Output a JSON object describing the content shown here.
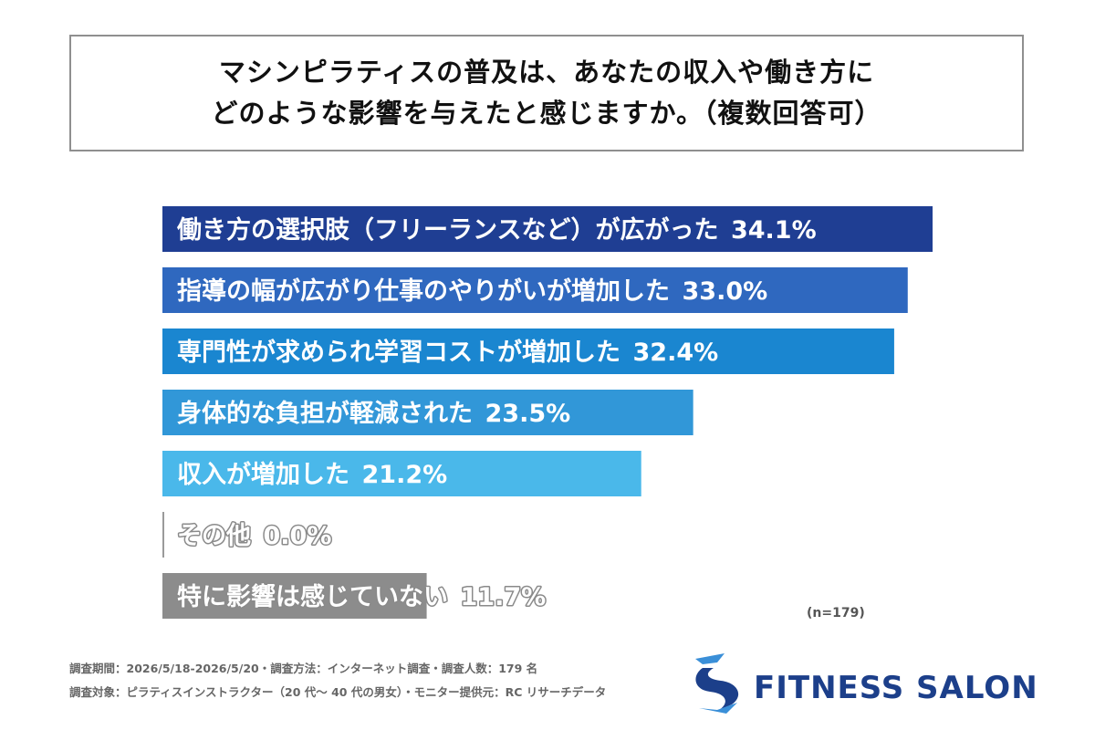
{
  "title": {
    "line1": "マシンピラティスの普及は、あなたの収入や働き方に",
    "line2": "どのような影響を与えたと感じますか。（複数回答可）"
  },
  "chart_data": {
    "type": "bar",
    "orientation": "horizontal",
    "categories": [
      "働き方の選択肢（フリーランスなど）が広がった",
      "指導の幅が広がり仕事のやりがいが増加した",
      "専門性が求められ学習コストが増加した",
      "身体的な負担が軽減された",
      "収入が増加した",
      "その他",
      "特に影響は感じていない"
    ],
    "values": [
      34.1,
      33.0,
      32.4,
      23.5,
      21.2,
      0.0,
      11.7
    ],
    "value_labels": [
      "34.1%",
      "33.0%",
      "32.4%",
      "23.5%",
      "21.2%",
      "0.0%",
      "11.7%"
    ],
    "colors": [
      "#1f3e93",
      "#2f68bf",
      "#1a86d0",
      "#3197d8",
      "#4ab8ea",
      "#9a9a9a",
      "#8c8c8c"
    ],
    "xlim": [
      0,
      34.1
    ],
    "grid": false,
    "legend": "none"
  },
  "n_label": "(n=179)",
  "footnotes": {
    "line1": "調査期間：2026/5/18-2026/5/20・調査方法：インターネット調査・調査人数：179 名",
    "line2": "調査対象：ピラティスインストラクター（20 代〜 40 代の男女）・モニター提供元：RC リサーチデータ"
  },
  "logo": {
    "text": "FITNESS SALON",
    "icon": "stylized-s-arrow-icon",
    "colors": {
      "navy": "#1c3f8a",
      "blue": "#3a8fd8"
    }
  }
}
